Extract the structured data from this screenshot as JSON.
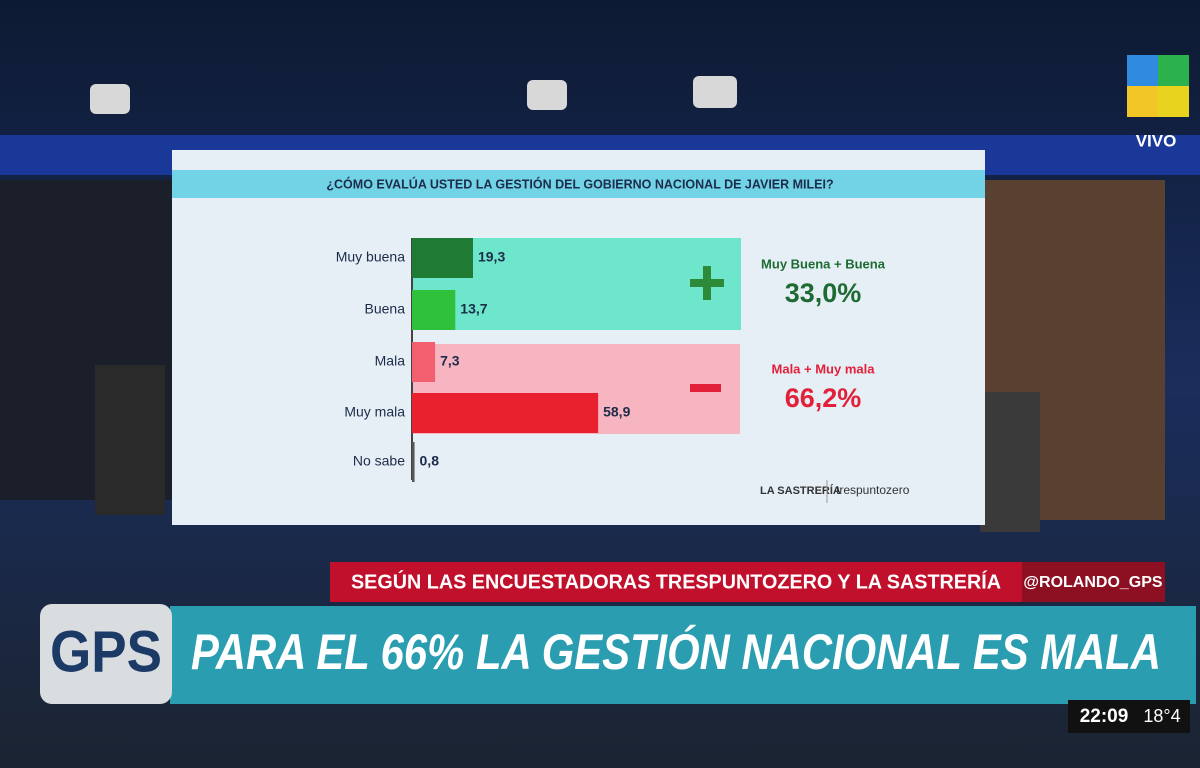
{
  "chart_data": {
    "type": "bar",
    "orientation": "horizontal",
    "title": "¿CÓMO EVALÚA USTED LA GESTIÓN DEL GOBIERNO NACIONAL DE JAVIER MILEI?",
    "categories": [
      "Muy buena",
      "Buena",
      "Mala",
      "Muy mala",
      "No sabe"
    ],
    "values": [
      19.3,
      13.7,
      7.3,
      58.9,
      0.8
    ],
    "value_labels": [
      "19,3",
      "13,7",
      "7,3",
      "58,9",
      "0,8"
    ],
    "colors": [
      "#1f7a33",
      "#2fc13b",
      "#f2606f",
      "#e9202d",
      "#555555"
    ],
    "groups": [
      {
        "label": "Muy Buena + Buena",
        "value": 33.0,
        "value_label": "33,0%",
        "color": "#1d6b32"
      },
      {
        "label": "Mala + Muy mala",
        "value": 66.2,
        "value_label": "66,2%",
        "color": "#e3203a"
      }
    ],
    "sources": [
      "LA SASTRERÍA",
      "trespuntozero"
    ]
  },
  "broadcast": {
    "logo": "GPS",
    "live": "VIVO",
    "subtitle": "SEGÚN LAS ENCUESTADORAS TRESPUNTOZERO Y LA SASTRERÍA",
    "handle": "@ROLANDO_GPS",
    "headline": "PARA EL 66% LA GESTIÓN NACIONAL ES MALA",
    "time": "22:09",
    "temperature": "18°4"
  }
}
